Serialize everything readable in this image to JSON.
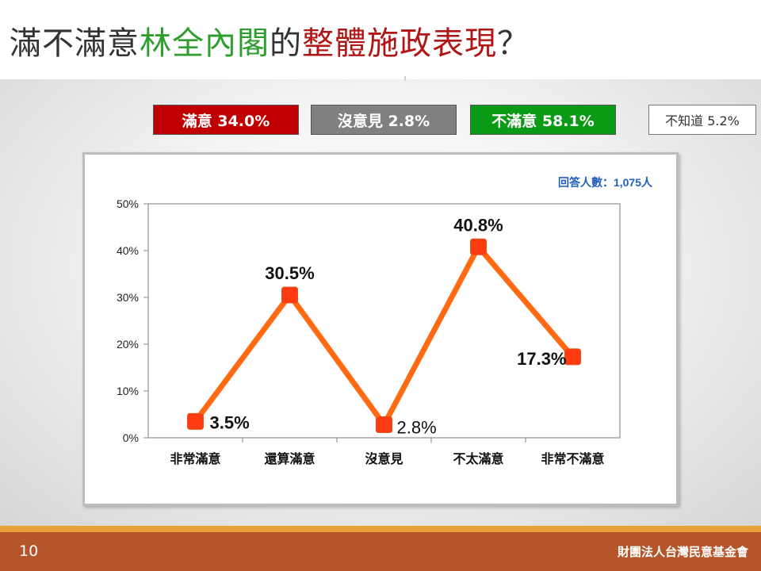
{
  "title": {
    "part1": "滿不滿意",
    "part2": "林全內閣",
    "part3": "的",
    "part4": "整體施政表現",
    "part5": "？",
    "colors": {
      "dark": "#333333",
      "green": "#2e9e2e",
      "red": "#b01616"
    }
  },
  "legend": [
    {
      "label": "滿意 34.0%",
      "color": "#c00000"
    },
    {
      "label": "沒意見 2.8%",
      "color": "#808080"
    },
    {
      "label": "不滿意 58.1%",
      "color": "#0a9a16"
    },
    {
      "label": "不知道 5.2%",
      "color": "#ffffff"
    }
  ],
  "chart_data": {
    "type": "line",
    "categories": [
      "非常滿意",
      "還算滿意",
      "沒意見",
      "不太滿意",
      "非常不滿意"
    ],
    "values": [
      3.5,
      30.5,
      2.8,
      40.8,
      17.3
    ],
    "data_labels": [
      "3.5%",
      "30.5%",
      "2.8%",
      "40.8%",
      "17.3%"
    ],
    "y_ticks": [
      "0%",
      "10%",
      "20%",
      "30%",
      "40%",
      "50%"
    ],
    "ylim": [
      0,
      50
    ],
    "unit": "%",
    "annotation": "回答人數：1,075人",
    "line_color": "#ff6a13",
    "marker_color": "#ff3b12",
    "grid": false
  },
  "footer": {
    "page_number": "10",
    "organization": "財團法人台灣民意基金會"
  }
}
